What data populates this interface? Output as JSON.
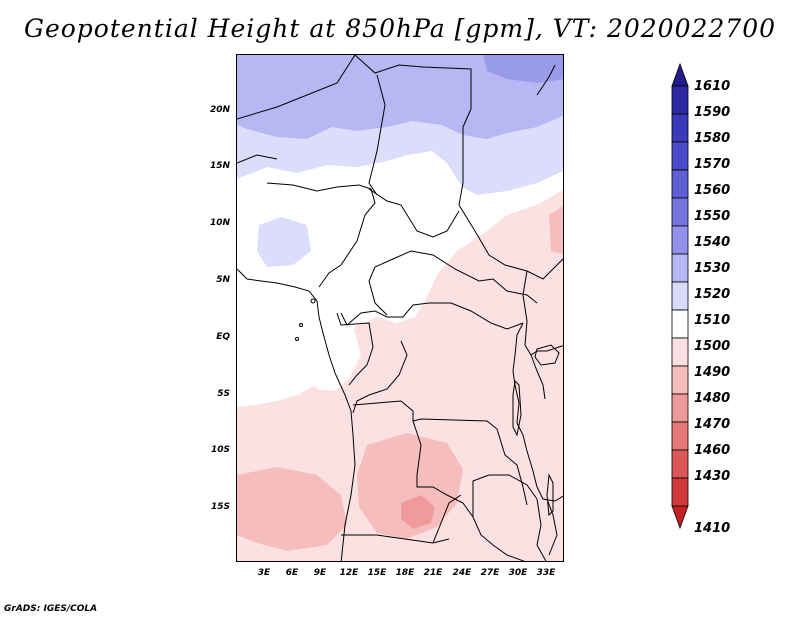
{
  "title": "Geopotential Height at 850hPa [gpm], VT: 2020022700",
  "footer": "GrADS: IGES/COLA",
  "lat_labels": [
    "20N",
    "15N",
    "10N",
    "5N",
    "EQ",
    "5S",
    "10S",
    "15S"
  ],
  "lon_labels": [
    "3E",
    "6E",
    "9E",
    "12E",
    "15E",
    "18E",
    "21E",
    "24E",
    "27E",
    "30E",
    "33E"
  ],
  "colorbar": {
    "levels": [
      "1610",
      "1590",
      "1580",
      "1570",
      "1560",
      "1550",
      "1540",
      "1530",
      "1520",
      "1510",
      "1500",
      "1490",
      "1480",
      "1470",
      "1460",
      "1430",
      "1410"
    ],
    "colors": [
      "#221c8c",
      "#2d2aa3",
      "#3b3ab8",
      "#4b4bc9",
      "#5f5fd6",
      "#7676e0",
      "#9292ea",
      "#b6b6f2",
      "#dadafa",
      "#ffffff",
      "#fae0e0",
      "#f5bcbc",
      "#ee9a9a",
      "#e67a7a",
      "#dd5959",
      "#d33b3b",
      "#c52222"
    ]
  },
  "field_colors": {
    "h_1530": "#b7b7f3",
    "h_1520": "#dcdcfb",
    "h_1510": "#ffffff",
    "h_1500": "#fbe1e1",
    "h_1490": "#f6bdbd",
    "h_1480": "#ef9b9b"
  }
}
